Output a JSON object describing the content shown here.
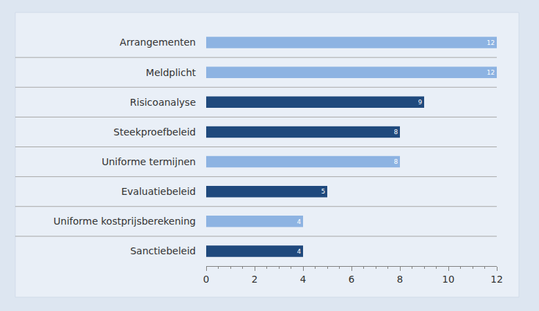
{
  "chart_data": {
    "type": "bar",
    "orientation": "horizontal",
    "categories": [
      "Arrangementen",
      "Meldplicht",
      "Risicoanalyse",
      "Steekproefbeleid",
      "Uniforme termijnen",
      "Evaluatiebeleid",
      "Uniforme kostprijsberekening",
      "Sanctiebeleid"
    ],
    "values": [
      12,
      12,
      9,
      8,
      8,
      5,
      4,
      4
    ],
    "colors": [
      "#8db3e2",
      "#8db3e2",
      "#1f497d",
      "#1f497d",
      "#8db3e2",
      "#1f497d",
      "#8db3e2",
      "#1f497d"
    ],
    "xlim": [
      0,
      12
    ],
    "xticks": [
      0,
      2,
      4,
      6,
      8,
      10,
      12
    ],
    "data_labels": true,
    "grid": true
  }
}
